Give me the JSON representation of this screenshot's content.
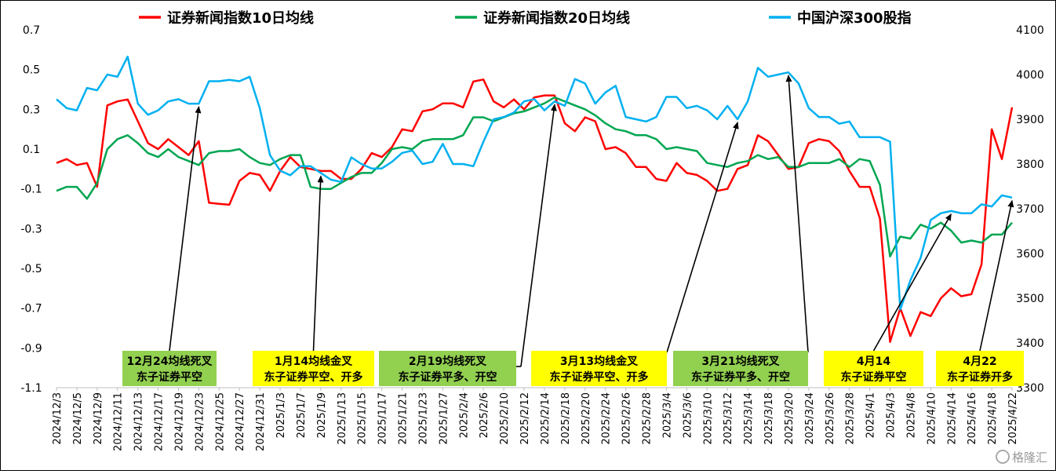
{
  "chart_data": {
    "type": "line",
    "legend": [
      {
        "name": "证券新闻指数10日均线",
        "color": "#ff0000"
      },
      {
        "name": "证券新闻指数20日均线",
        "color": "#00a651"
      },
      {
        "name": "中国沪深300股指",
        "color": "#00b0f0"
      }
    ],
    "left_axis": {
      "ylim": [
        -1.1,
        0.7
      ],
      "ticks": [
        "0.7",
        "0.5",
        "0.3",
        "0.1",
        "-0.1",
        "-0.3",
        "-0.5",
        "-0.7",
        "-0.9",
        "-1.1"
      ]
    },
    "right_axis": {
      "ylim": [
        3300,
        4100
      ],
      "ticks": [
        "4100",
        "4000",
        "3900",
        "3800",
        "3700",
        "3600",
        "3500",
        "3400",
        "3300"
      ]
    },
    "x_tick_labels": [
      "2024/12/3",
      "2024/12/5",
      "2024/12/9",
      "2024/12/11",
      "2024/12/13",
      "2024/12/17",
      "2024/12/19",
      "2024/12/23",
      "2024/12/25",
      "2024/12/27",
      "2024/12/31",
      "2025/1/3",
      "2025/1/7",
      "2025/1/9",
      "2025/1/13",
      "2025/1/15",
      "2025/1/17",
      "2025/1/21",
      "2025/1/23",
      "2025/1/27",
      "2025/2/4",
      "2025/2/6",
      "2025/2/10",
      "2025/2/12",
      "2025/2/14",
      "2025/2/18",
      "2025/2/20",
      "2025/2/24",
      "2025/2/26",
      "2025/2/28",
      "2025/3/4",
      "2025/3/6",
      "2025/3/10",
      "2025/3/12",
      "2025/3/14",
      "2025/3/18",
      "2025/3/20",
      "2025/3/24",
      "2025/3/26",
      "2025/3/28",
      "2025/4/1",
      "2025/4/3",
      "2025/4/8",
      "2025/4/10",
      "2025/4/14",
      "2025/4/16",
      "2025/4/18",
      "2025/4/22"
    ],
    "series": [
      {
        "name": "证券新闻指数10日均线",
        "axis": "left",
        "color": "#ff0000",
        "values": [
          0.03,
          0.05,
          0.02,
          0.03,
          -0.09,
          0.32,
          0.34,
          0.35,
          0.24,
          0.13,
          0.1,
          0.15,
          0.11,
          0.07,
          0.14,
          -0.17,
          -0.175,
          -0.18,
          -0.06,
          -0.02,
          -0.03,
          -0.11,
          -0.01,
          0.06,
          0.01,
          0.0,
          -0.01,
          -0.01,
          -0.05,
          -0.05,
          0.0,
          0.08,
          0.06,
          0.11,
          0.2,
          0.19,
          0.29,
          0.3,
          0.33,
          0.33,
          0.31,
          0.44,
          0.45,
          0.34,
          0.31,
          0.35,
          0.3,
          0.36,
          0.37,
          0.37,
          0.23,
          0.19,
          0.26,
          0.24,
          0.1,
          0.11,
          0.08,
          0.01,
          0.01,
          -0.05,
          -0.06,
          0.03,
          -0.02,
          -0.03,
          -0.06,
          -0.11,
          -0.1,
          0.0,
          0.02,
          0.17,
          0.14,
          0.07,
          0.0,
          0.01,
          0.13,
          0.15,
          0.14,
          0.09,
          -0.01,
          -0.09,
          -0.09,
          -0.25,
          -0.87,
          -0.7,
          -0.84,
          -0.72,
          -0.74,
          -0.65,
          -0.6,
          -0.64,
          -0.63,
          -0.48,
          0.2,
          0.05,
          0.31
        ]
      },
      {
        "name": "证券新闻指数20日均线",
        "axis": "left",
        "color": "#00a651",
        "values": [
          -0.11,
          -0.09,
          -0.09,
          -0.15,
          -0.07,
          0.1,
          0.15,
          0.17,
          0.13,
          0.08,
          0.06,
          0.1,
          0.06,
          0.04,
          0.02,
          0.08,
          0.09,
          0.09,
          0.1,
          0.06,
          0.03,
          0.02,
          0.05,
          0.07,
          0.07,
          -0.09,
          -0.1,
          -0.1,
          -0.07,
          -0.04,
          -0.02,
          -0.02,
          0.03,
          0.1,
          0.11,
          0.1,
          0.14,
          0.15,
          0.15,
          0.15,
          0.17,
          0.26,
          0.26,
          0.24,
          0.26,
          0.28,
          0.29,
          0.31,
          0.33,
          0.36,
          0.34,
          0.32,
          0.3,
          0.27,
          0.23,
          0.2,
          0.19,
          0.17,
          0.17,
          0.15,
          0.1,
          0.11,
          0.1,
          0.09,
          0.03,
          0.02,
          0.01,
          0.03,
          0.04,
          0.07,
          0.05,
          0.06,
          0.01,
          0.01,
          0.03,
          0.03,
          0.03,
          0.05,
          0.01,
          0.05,
          0.04,
          -0.08,
          -0.44,
          -0.34,
          -0.35,
          -0.28,
          -0.3,
          -0.27,
          -0.31,
          -0.37,
          -0.36,
          -0.37,
          -0.33,
          -0.33,
          -0.27
        ]
      },
      {
        "name": "中国沪深300股指",
        "axis": "right",
        "color": "#00b0f0",
        "values": [
          3945,
          3925,
          3920,
          3970,
          3965,
          4000,
          3995,
          4040,
          3935,
          3910,
          3920,
          3940,
          3945,
          3935,
          3935,
          3985,
          3985,
          3988,
          3985,
          3995,
          3925,
          3820,
          3785,
          3775,
          3795,
          3795,
          3780,
          3765,
          3760,
          3815,
          3800,
          3790,
          3790,
          3805,
          3825,
          3830,
          3800,
          3805,
          3845,
          3800,
          3800,
          3795,
          3850,
          3900,
          3905,
          3915,
          3940,
          3945,
          3920,
          3940,
          3930,
          3990,
          3980,
          3935,
          3960,
          3975,
          3905,
          3900,
          3895,
          3905,
          3950,
          3950,
          3925,
          3930,
          3920,
          3900,
          3930,
          3900,
          3940,
          4015,
          3995,
          4000,
          4005,
          3980,
          3925,
          3905,
          3905,
          3890,
          3895,
          3860,
          3860,
          3860,
          3850,
          3475,
          3540,
          3590,
          3675,
          3690,
          3695,
          3690,
          3690,
          3710,
          3705,
          3730,
          3725
        ]
      }
    ],
    "annotations": [
      {
        "line1": "12月24均线死叉",
        "line2": "东子证券平空",
        "bg": "#92d050",
        "point_index": 14
      },
      {
        "line1": "1月14均线金叉",
        "line2": "东子证券平空、开多",
        "bg": "#ffff00",
        "point_index": 26
      },
      {
        "line1": "2月19均线死叉",
        "line2": "东子证券平多、开空",
        "bg": "#92d050",
        "point_index": 49
      },
      {
        "line1": "3月13均线金叉",
        "line2": "东子证券平空、开多",
        "bg": "#ffff00",
        "point_index": 67
      },
      {
        "line1": "3月21均线死叉",
        "line2": "东子证券平多、开空",
        "bg": "#92d050",
        "point_index": 72
      },
      {
        "line1": "4月14",
        "line2": "东子证券平空",
        "bg": "#ffff00",
        "point_index": 88
      },
      {
        "line1": "4月22",
        "line2": "东子证券开多",
        "bg": "#ffff00",
        "point_index": 94
      }
    ],
    "watermark": "格隆汇"
  }
}
